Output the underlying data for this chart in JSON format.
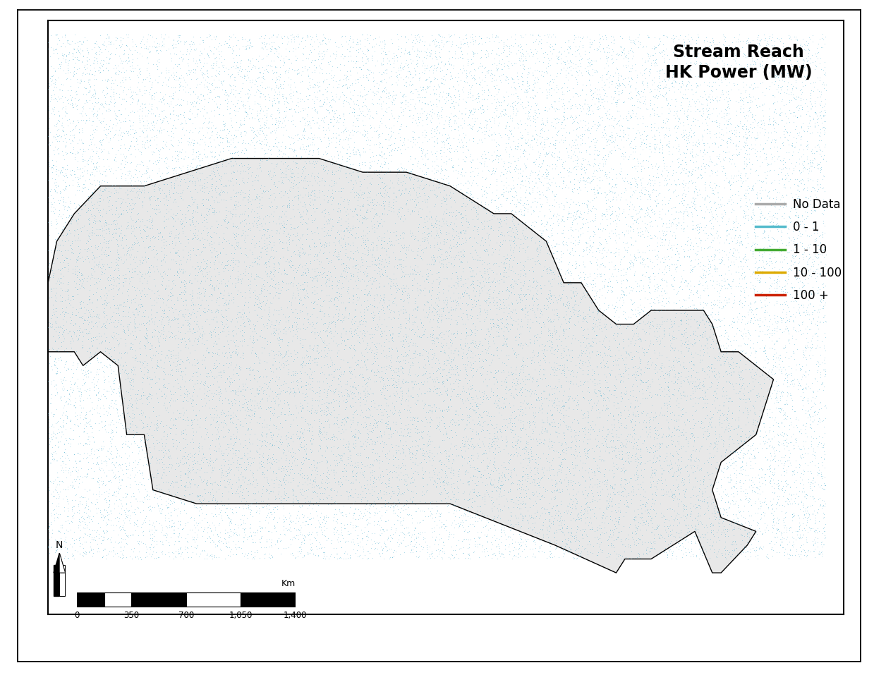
{
  "title_line1": "Stream Reach",
  "title_line2": "HK Power (MW)",
  "title_fontsize": 17,
  "title_fontweight": "bold",
  "legend_labels": [
    "No Data",
    "0 - 1",
    "1 - 10",
    "10 - 100",
    "100 +"
  ],
  "legend_colors": [
    "#aaaaaa",
    "#55bbcc",
    "#44aa33",
    "#ddaa00",
    "#cc2200"
  ],
  "scalebar_ticks": [
    "0",
    "350",
    "700",
    "1,050",
    "1,400"
  ],
  "scalebar_unit": "Km",
  "fig_bg": "#ffffff",
  "map_bg": "#ffffff",
  "land_color": "#d4d4d4",
  "canada_color": "#e8e8e8",
  "water_color": "#ffffff",
  "border_color": "#000000",
  "province_border_color": "#444444",
  "no_data_color": "#b8b8b8",
  "point_blue": "#44aacc",
  "point_green": "#33aa33",
  "point_orange": "#ddaa00",
  "point_red": "#cc2200",
  "point_gray": "#aaaaaa"
}
